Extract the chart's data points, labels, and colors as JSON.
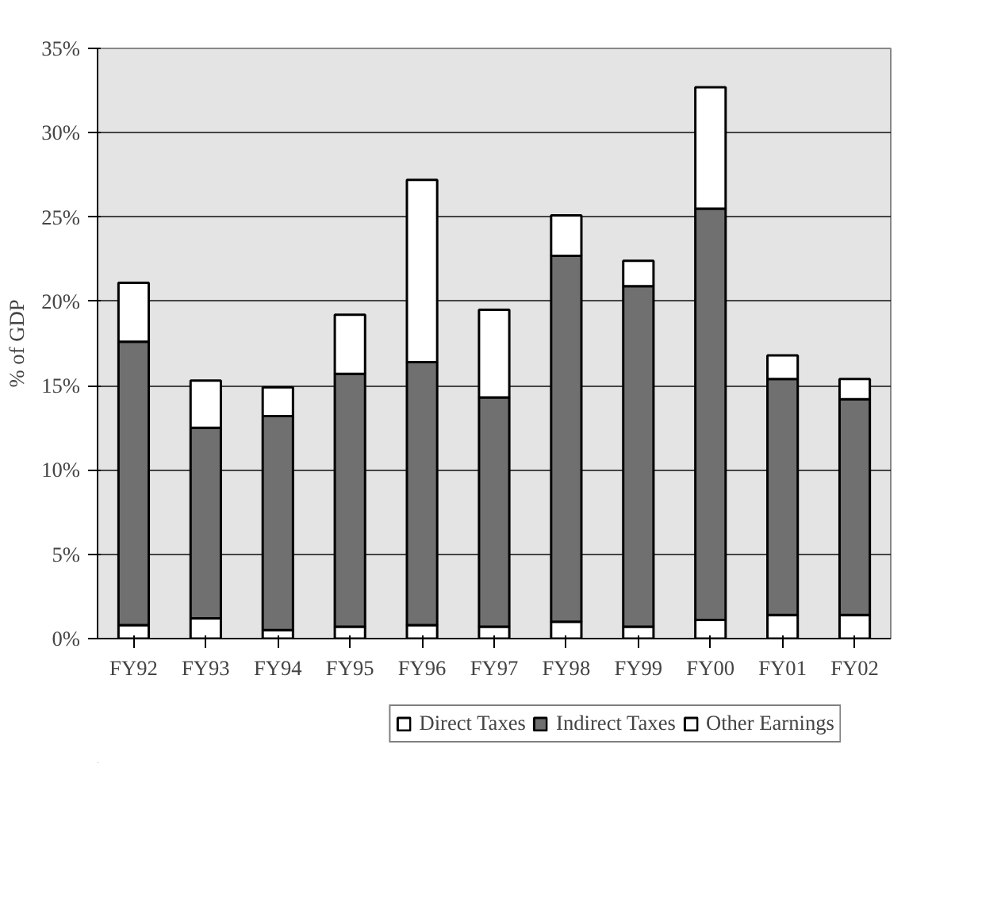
{
  "chart_data": {
    "type": "bar",
    "stacked": true,
    "ylabel": "% of GDP",
    "categories": [
      "FY92",
      "FY93",
      "FY94",
      "FY95",
      "FY96",
      "FY97",
      "FY98",
      "FY99",
      "FY00",
      "FY01",
      "FY02"
    ],
    "series": [
      {
        "name": "Direct Taxes",
        "color": "#ffffff",
        "values": [
          0.8,
          1.2,
          0.5,
          0.7,
          0.8,
          0.7,
          1.0,
          0.7,
          1.1,
          1.4,
          1.4
        ]
      },
      {
        "name": "Indirect Taxes",
        "color": "#707070",
        "values": [
          16.8,
          11.3,
          12.7,
          15.0,
          15.6,
          13.6,
          21.7,
          20.2,
          24.4,
          14.0,
          12.8
        ]
      },
      {
        "name": "Other Earnings",
        "color": "#ffffff",
        "values": [
          3.5,
          2.8,
          1.7,
          3.5,
          10.8,
          5.2,
          2.4,
          1.5,
          7.2,
          1.4,
          1.2
        ]
      }
    ],
    "ylim": [
      0,
      35
    ],
    "yticks": [
      {
        "value": 0,
        "label": "0%"
      },
      {
        "value": 5,
        "label": "5%"
      },
      {
        "value": 10,
        "label": "10%"
      },
      {
        "value": 15,
        "label": "15%"
      },
      {
        "value": 20,
        "label": "20%"
      },
      {
        "value": 25,
        "label": "25%"
      },
      {
        "value": 30,
        "label": "30%"
      },
      {
        "value": 35,
        "label": "35%"
      }
    ],
    "grid": "y",
    "legend": "bottom"
  }
}
